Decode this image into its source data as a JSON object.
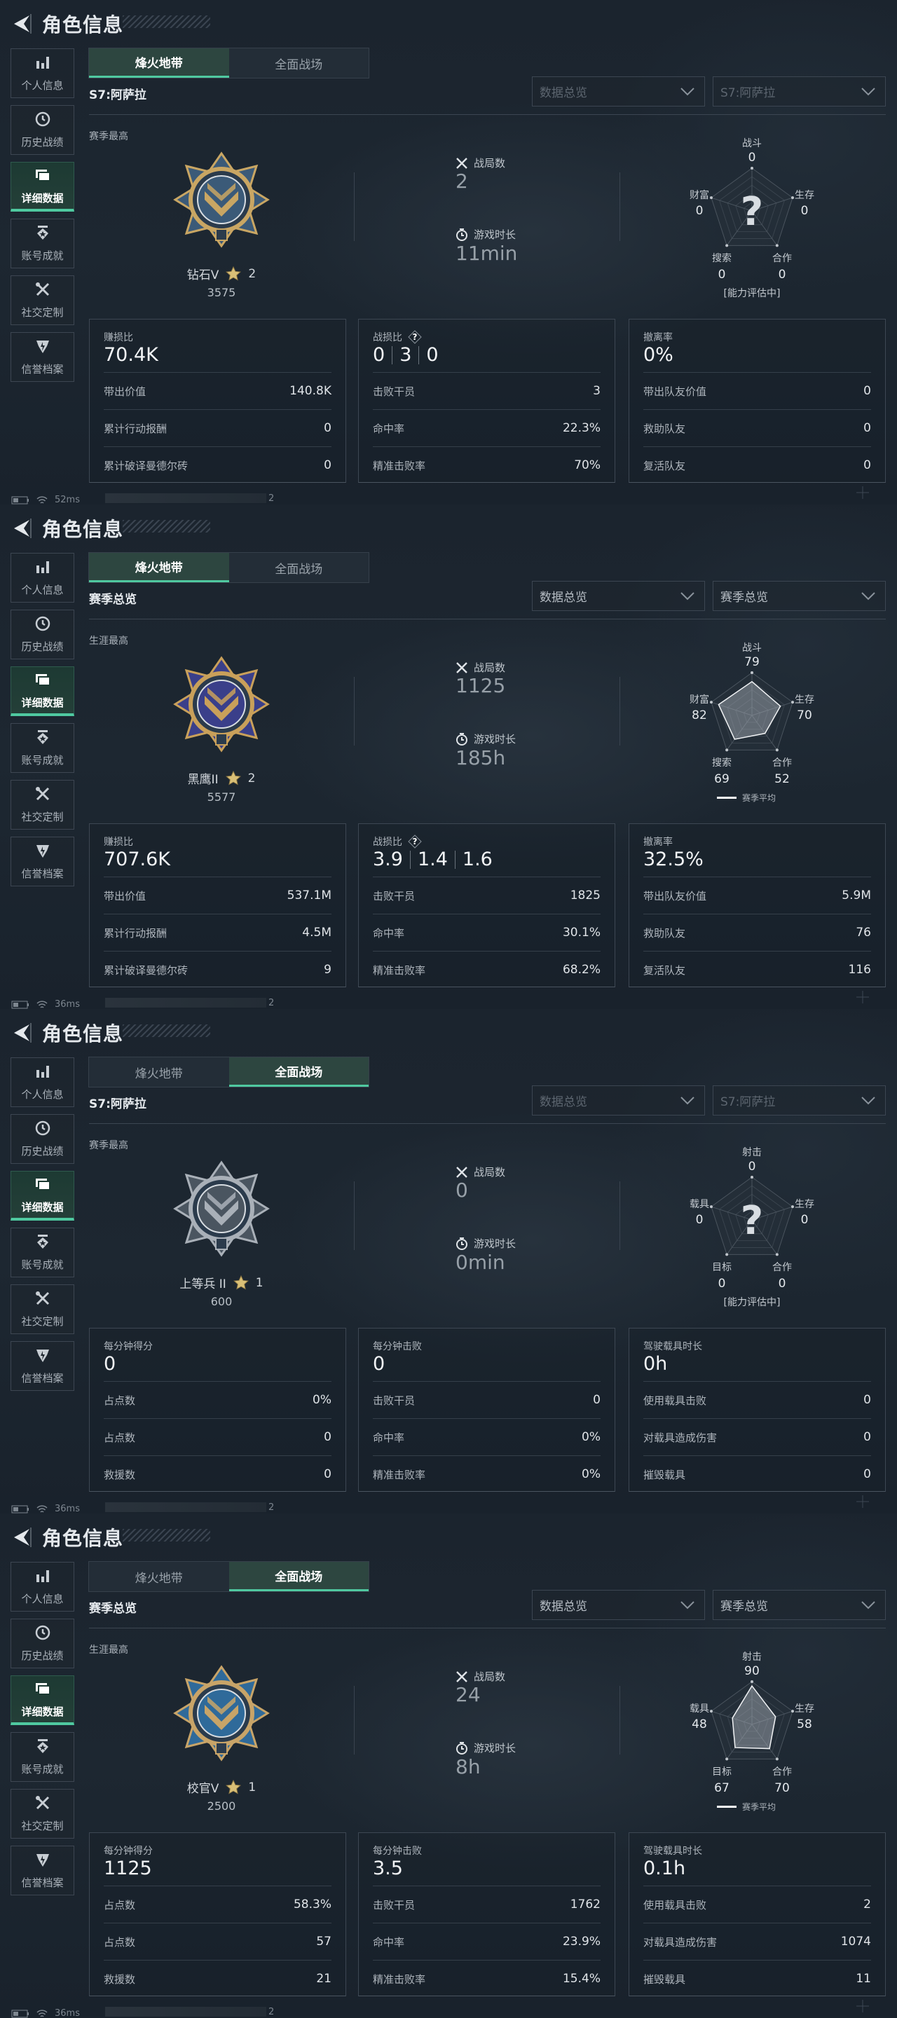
{
  "header": {
    "title": "角色信息",
    "back_icon": "back-arrow-icon"
  },
  "colors": {
    "accent": "#4fc9a0",
    "background": "#1b242e",
    "card_border": "#3d4753"
  },
  "sidebar": [
    {
      "label": "个人信息",
      "icon": "bar-chart-icon"
    },
    {
      "label": "历史战绩",
      "icon": "clock-history-icon"
    },
    {
      "label": "详细数据",
      "icon": "folder-data-icon",
      "active": true
    },
    {
      "label": "账号成就",
      "icon": "achievement-badge-icon"
    },
    {
      "label": "社交定制",
      "icon": "tools-icon"
    },
    {
      "label": "信誉档案",
      "icon": "shield-credit-icon"
    }
  ],
  "tabs": [
    "烽火地带",
    "全面战场"
  ],
  "panels": [
    {
      "active_tab": 0,
      "section_title": "S7:阿萨拉",
      "dropdowns": [
        "数据总览",
        "S7:阿萨拉"
      ],
      "dropdowns_disabled": true,
      "rank_caption": "赛季最高",
      "rank": {
        "name": "钻石V",
        "stars": "2",
        "score": "3575",
        "medal": "diamond-eagle-medal",
        "primary": "#3b5a78",
        "metal": "#c9a663"
      },
      "battles": {
        "label": "战局数",
        "value": "2"
      },
      "playtime": {
        "label": "游戏时长",
        "value": "11min"
      },
      "radar": {
        "axes": [
          {
            "label": "战斗",
            "value": 0
          },
          {
            "label": "生存",
            "value": 0
          },
          {
            "label": "合作",
            "value": 0
          },
          {
            "label": "搜索",
            "value": 0
          },
          {
            "label": "财富",
            "value": 0
          }
        ],
        "evaluating": true,
        "status": "[能力评估中]",
        "max": 100
      },
      "cards": [
        {
          "title": "赚损比",
          "value": "70.4K",
          "rows": [
            {
              "label": "带出价值",
              "value": "140.8K"
            },
            {
              "label": "累计行动报酬",
              "value": "0"
            },
            {
              "label": "累计破译曼德尔砖",
              "value": "0"
            }
          ]
        },
        {
          "title": "战损比",
          "help": true,
          "parts": [
            "0",
            "3",
            "0"
          ],
          "rows": [
            {
              "label": "击败干员",
              "value": "3"
            },
            {
              "label": "命中率",
              "value": "22.3%"
            },
            {
              "label": "精准击败率",
              "value": "70%"
            }
          ]
        },
        {
          "title": "撤离率",
          "value": "0%",
          "rows": [
            {
              "label": "带出队友价值",
              "value": "0"
            },
            {
              "label": "救助队友",
              "value": "0"
            },
            {
              "label": "复活队友",
              "value": "0"
            }
          ]
        }
      ],
      "footer": {
        "ping": "52ms",
        "trailing": "2"
      }
    },
    {
      "active_tab": 0,
      "section_title": "赛季总览",
      "dropdowns": [
        "数据总览",
        "赛季总览"
      ],
      "dropdowns_disabled": false,
      "rank_caption": "生涯最高",
      "rank": {
        "name": "黑鹰II",
        "stars": "2",
        "score": "5577",
        "medal": "black-hawk-medal",
        "primary": "#3a3f8a",
        "metal": "#c9a05a"
      },
      "battles": {
        "label": "战局数",
        "value": "1125"
      },
      "playtime": {
        "label": "游戏时长",
        "value": "185h"
      },
      "radar": {
        "axes": [
          {
            "label": "战斗",
            "value": 79
          },
          {
            "label": "生存",
            "value": 70
          },
          {
            "label": "合作",
            "value": 52
          },
          {
            "label": "搜索",
            "value": 69
          },
          {
            "label": "财富",
            "value": 82
          }
        ],
        "evaluating": false,
        "legend": "赛季平均",
        "max": 100
      },
      "cards": [
        {
          "title": "赚损比",
          "value": "707.6K",
          "rows": [
            {
              "label": "带出价值",
              "value": "537.1M"
            },
            {
              "label": "累计行动报酬",
              "value": "4.5M"
            },
            {
              "label": "累计破译曼德尔砖",
              "value": "9"
            }
          ]
        },
        {
          "title": "战损比",
          "help": true,
          "parts": [
            "3.9",
            "1.4",
            "1.6"
          ],
          "rows": [
            {
              "label": "击败干员",
              "value": "1825"
            },
            {
              "label": "命中率",
              "value": "30.1%"
            },
            {
              "label": "精准击败率",
              "value": "68.2%"
            }
          ]
        },
        {
          "title": "撤离率",
          "value": "32.5%",
          "rows": [
            {
              "label": "带出队友价值",
              "value": "5.9M"
            },
            {
              "label": "救助队友",
              "value": "76"
            },
            {
              "label": "复活队友",
              "value": "116"
            }
          ]
        }
      ],
      "footer": {
        "ping": "36ms",
        "trailing": "2"
      }
    },
    {
      "active_tab": 1,
      "section_title": "S7:阿萨拉",
      "dropdowns": [
        "数据总览",
        "S7:阿萨拉"
      ],
      "dropdowns_disabled": true,
      "rank_caption": "赛季最高",
      "rank": {
        "name": "上等兵 II",
        "stars": "1",
        "score": "600",
        "medal": "private-chevron-medal",
        "primary": "#4a5560",
        "metal": "#a9b0b8"
      },
      "battles": {
        "label": "战局数",
        "value": "0"
      },
      "playtime": {
        "label": "游戏时长",
        "value": "0min"
      },
      "radar": {
        "axes": [
          {
            "label": "射击",
            "value": 0
          },
          {
            "label": "生存",
            "value": 0
          },
          {
            "label": "合作",
            "value": 0
          },
          {
            "label": "目标",
            "value": 0
          },
          {
            "label": "载具",
            "value": 0
          }
        ],
        "evaluating": true,
        "status": "[能力评估中]",
        "max": 100
      },
      "cards": [
        {
          "title": "每分钟得分",
          "value": "0",
          "rows": [
            {
              "label": "占点数",
              "value": "0%"
            },
            {
              "label": "占点数",
              "value": "0"
            },
            {
              "label": "救援数",
              "value": "0"
            }
          ]
        },
        {
          "title": "每分钟击败",
          "value": "0",
          "rows": [
            {
              "label": "击败干员",
              "value": "0"
            },
            {
              "label": "命中率",
              "value": "0%"
            },
            {
              "label": "精准击败率",
              "value": "0%"
            }
          ]
        },
        {
          "title": "驾驶载具时长",
          "value": "0h",
          "rows": [
            {
              "label": "使用载具击败",
              "value": "0"
            },
            {
              "label": "对载具造成伤害",
              "value": "0"
            },
            {
              "label": "摧毁载具",
              "value": "0"
            }
          ]
        }
      ],
      "footer": {
        "ping": "36ms",
        "trailing": "2"
      }
    },
    {
      "active_tab": 1,
      "section_title": "赛季总览",
      "dropdowns": [
        "数据总览",
        "赛季总览"
      ],
      "dropdowns_disabled": false,
      "rank_caption": "生涯最高",
      "rank": {
        "name": "校官V",
        "stars": "1",
        "score": "2500",
        "medal": "officer-chevron-medal",
        "primary": "#2f6a9a",
        "metal": "#c8a468"
      },
      "battles": {
        "label": "战局数",
        "value": "24"
      },
      "playtime": {
        "label": "游戏时长",
        "value": "8h"
      },
      "radar": {
        "axes": [
          {
            "label": "射击",
            "value": 90
          },
          {
            "label": "生存",
            "value": 58
          },
          {
            "label": "合作",
            "value": 70
          },
          {
            "label": "目标",
            "value": 67
          },
          {
            "label": "载具",
            "value": 48
          }
        ],
        "evaluating": false,
        "legend": "赛季平均",
        "max": 100
      },
      "cards": [
        {
          "title": "每分钟得分",
          "value": "1125",
          "rows": [
            {
              "label": "占点数",
              "value": "58.3%"
            },
            {
              "label": "占点数",
              "value": "57"
            },
            {
              "label": "救援数",
              "value": "21"
            }
          ]
        },
        {
          "title": "每分钟击败",
          "value": "3.5",
          "rows": [
            {
              "label": "击败干员",
              "value": "1762"
            },
            {
              "label": "命中率",
              "value": "23.9%"
            },
            {
              "label": "精准击败率",
              "value": "15.4%"
            }
          ]
        },
        {
          "title": "驾驶载具时长",
          "value": "0.1h",
          "rows": [
            {
              "label": "使用载具击败",
              "value": "2"
            },
            {
              "label": "对载具造成伤害",
              "value": "1074"
            },
            {
              "label": "摧毁载具",
              "value": "11"
            }
          ]
        }
      ],
      "footer": {
        "ping": "36ms",
        "trailing": "2"
      }
    }
  ]
}
